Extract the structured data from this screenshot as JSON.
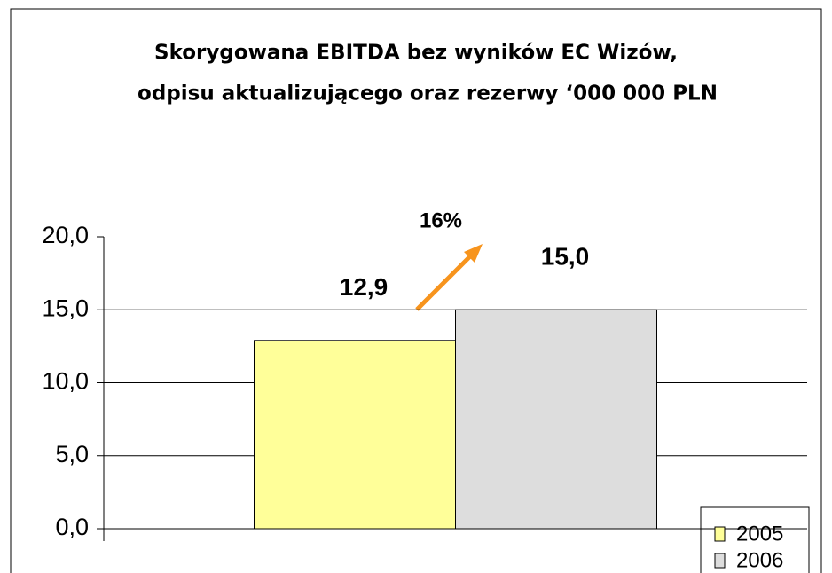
{
  "chart_data": {
    "type": "bar",
    "title": [
      "Skorygowana EBITDA bez wyników EC Wizów,",
      "odpisu aktualizującego oraz rezerwy ‘000 000 PLN"
    ],
    "annotation": "16%",
    "categories": [
      null
    ],
    "series": [
      {
        "name": "2005",
        "color": "#ffff99",
        "values": [
          12.9
        ],
        "value_labels": [
          "12,9"
        ]
      },
      {
        "name": "2006",
        "color": "#dddddd",
        "values": [
          15.0
        ],
        "value_labels": [
          "15,0"
        ]
      }
    ],
    "ylim": [
      0,
      20
    ],
    "yticks": [
      {
        "value": 0,
        "label": "0,0"
      },
      {
        "value": 5,
        "label": "5,0"
      },
      {
        "value": 10,
        "label": "10,0"
      },
      {
        "value": 15,
        "label": "15,0"
      },
      {
        "value": 20,
        "label": "20,0"
      }
    ],
    "grid": true,
    "legend": "bottom-right"
  }
}
